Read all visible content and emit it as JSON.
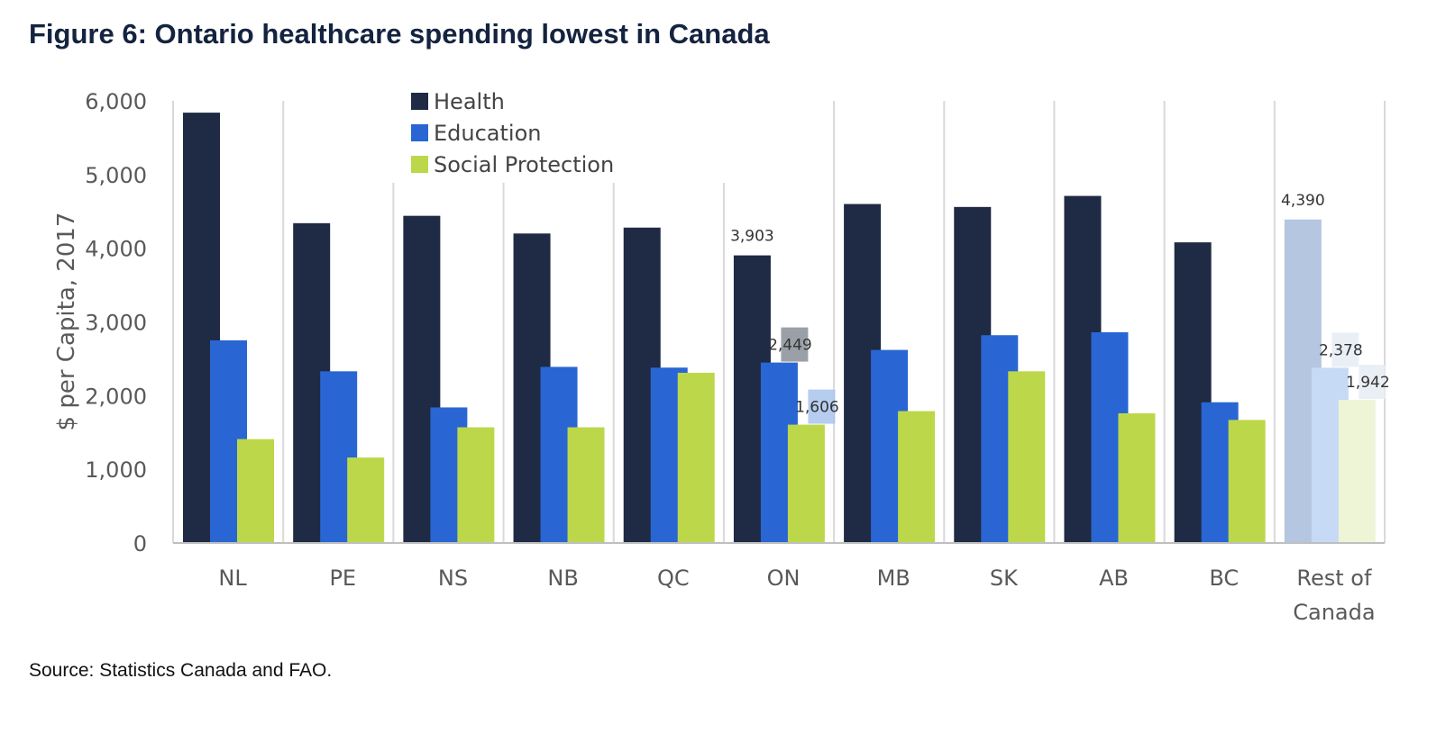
{
  "page": {
    "title": "Figure 6: Ontario healthcare spending lowest in Canada",
    "source": "Source: Statistics Canada and FAO."
  },
  "chart_data": {
    "type": "bar",
    "title": "Figure 6: Ontario healthcare spending lowest in Canada",
    "xlabel": "",
    "ylabel": "$ per Capita, 2017",
    "ylim": [
      0,
      6000
    ],
    "yticks": [
      "0",
      "1,000",
      "2,000",
      "3,000",
      "4,000",
      "5,000",
      "6,000"
    ],
    "categories": [
      "NL",
      "PE",
      "NS",
      "NB",
      "QC",
      "ON",
      "MB",
      "SK",
      "AB",
      "BC",
      "Rest of Canada"
    ],
    "legend_position": "top-center",
    "series": [
      {
        "name": "Health",
        "color": "#1f2a44",
        "values": [
          5840,
          4340,
          4440,
          4200,
          4280,
          3903,
          4600,
          4560,
          4710,
          4080,
          4390
        ]
      },
      {
        "name": "Education",
        "color": "#2966d3",
        "values": [
          2750,
          2330,
          1840,
          2390,
          2380,
          2449,
          2620,
          2820,
          2860,
          1910,
          2378
        ]
      },
      {
        "name": "Social Protection",
        "color": "#bcd84a",
        "values": [
          1410,
          1160,
          1570,
          1570,
          2310,
          1606,
          1790,
          2330,
          1760,
          1670,
          1942
        ]
      }
    ],
    "highlighted_category": "Rest of Canada",
    "highlight_colors": [
      "#b4c6e0",
      "#c7daf5",
      "#eef4d6"
    ],
    "data_labels": [
      {
        "category": "ON",
        "series": "Health",
        "text": "3,903"
      },
      {
        "category": "ON",
        "series": "Education",
        "text": "2,449"
      },
      {
        "category": "ON",
        "series": "Social Protection",
        "text": "1,606"
      },
      {
        "category": "Rest of Canada",
        "series": "Health",
        "text": "4,390"
      },
      {
        "category": "Rest of Canada",
        "series": "Education",
        "text": "2,378"
      },
      {
        "category": "Rest of Canada",
        "series": "Social Protection",
        "text": "1,942"
      }
    ]
  }
}
